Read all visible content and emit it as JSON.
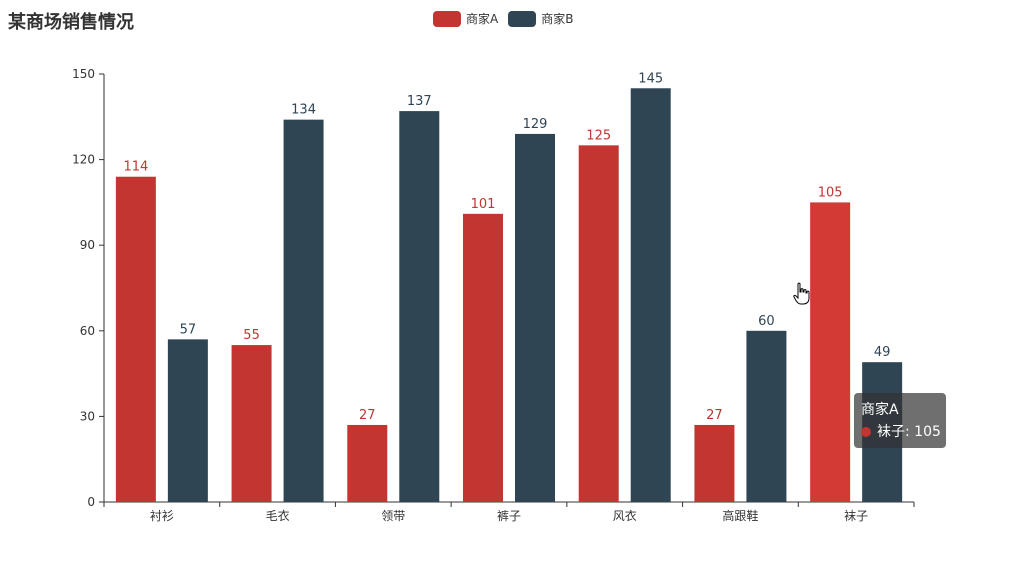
{
  "chart_data": {
    "type": "bar",
    "title": "某商场销售情况",
    "categories": [
      "衬衫",
      "毛衣",
      "领带",
      "裤子",
      "风衣",
      "高跟鞋",
      "袜子"
    ],
    "series": [
      {
        "name": "商家A",
        "color": "#c23531",
        "values": [
          114,
          55,
          27,
          101,
          125,
          27,
          105
        ]
      },
      {
        "name": "商家B",
        "color": "#2f4554",
        "values": [
          57,
          134,
          137,
          129,
          145,
          60,
          49
        ]
      }
    ],
    "ylim": [
      0,
      150
    ],
    "yticks": [
      0,
      30,
      60,
      90,
      120,
      150
    ],
    "legend_position": "top-center",
    "grid": false,
    "highlight": {
      "series": 0,
      "index": 6,
      "color": "#d23a35"
    }
  },
  "tooltip": {
    "series_name": "商家A",
    "item_text": "袜子: 105",
    "dot_color": "#c23531"
  },
  "cursor": {
    "icon": "hand-pointer-icon"
  }
}
